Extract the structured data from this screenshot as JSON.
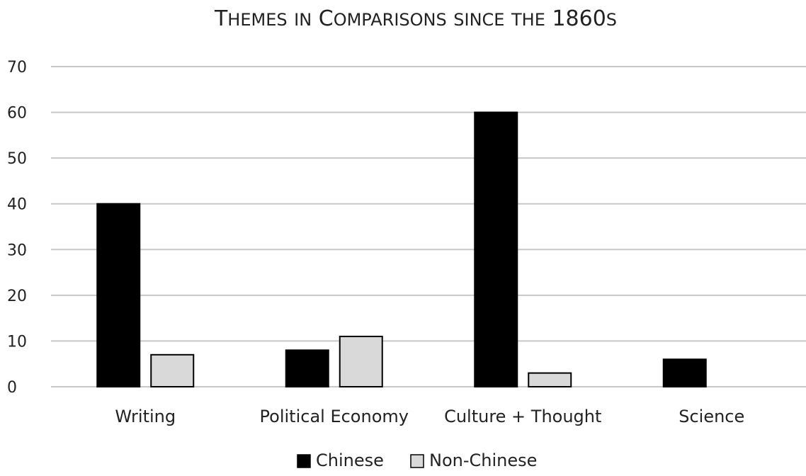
{
  "chart_data": {
    "type": "bar",
    "title": "Themes in Comparisons since the 1860s",
    "xlabel": "",
    "ylabel": "",
    "categories": [
      "Writing",
      "Political Economy",
      "Culture + Thought",
      "Science"
    ],
    "series": [
      {
        "name": "Chinese",
        "values": [
          40,
          8,
          60,
          6
        ],
        "color": "#000000"
      },
      {
        "name": "Non-Chinese",
        "values": [
          7,
          11,
          3,
          0
        ],
        "color": "#d9d9d9"
      }
    ],
    "ylim": [
      0,
      70
    ],
    "yticks": [
      0,
      10,
      20,
      30,
      40,
      50,
      60,
      70
    ],
    "grid": true,
    "legend": "bottom-center",
    "colors": {
      "gridline": "#c8c8c8",
      "outline": "#000000",
      "text": "#222222"
    }
  }
}
